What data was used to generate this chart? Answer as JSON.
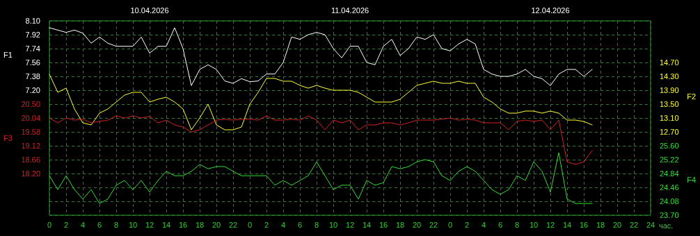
{
  "chart_data": [
    {
      "type": "line",
      "ylabel": "F1",
      "y2label": "F2",
      "xlabel": "час.",
      "annotations": [
        "10.04.2026",
        "11.04.2026",
        "12.04.2026"
      ],
      "x": [
        "2026-04-10T00:00",
        "2026-04-10T01:00",
        "2026-04-10T02:00",
        "2026-04-10T03:00",
        "2026-04-10T04:00",
        "2026-04-10T05:00",
        "2026-04-10T06:00",
        "2026-04-10T07:00",
        "2026-04-10T08:00",
        "2026-04-10T09:00",
        "2026-04-10T10:00",
        "2026-04-10T11:00",
        "2026-04-10T12:00",
        "2026-04-10T13:00",
        "2026-04-10T14:00",
        "2026-04-10T15:00",
        "2026-04-10T16:00",
        "2026-04-10T17:00",
        "2026-04-10T18:00",
        "2026-04-10T19:00",
        "2026-04-10T20:00",
        "2026-04-10T21:00",
        "2026-04-10T22:00",
        "2026-04-10T23:00",
        "2026-04-11T00:00",
        "2026-04-11T01:00",
        "2026-04-11T02:00",
        "2026-04-11T03:00",
        "2026-04-11T04:00",
        "2026-04-11T05:00",
        "2026-04-11T06:00",
        "2026-04-11T07:00",
        "2026-04-11T08:00",
        "2026-04-11T09:00",
        "2026-04-11T10:00",
        "2026-04-11T11:00",
        "2026-04-11T12:00",
        "2026-04-11T13:00",
        "2026-04-11T14:00",
        "2026-04-11T15:00",
        "2026-04-11T16:00",
        "2026-04-11T17:00",
        "2026-04-11T18:00",
        "2026-04-11T19:00",
        "2026-04-11T20:00",
        "2026-04-11T21:00",
        "2026-04-11T22:00",
        "2026-04-11T23:00",
        "2026-04-12T00:00",
        "2026-04-12T01:00",
        "2026-04-12T02:00",
        "2026-04-12T03:00",
        "2026-04-12T04:00",
        "2026-04-12T05:00",
        "2026-04-12T06:00",
        "2026-04-12T07:00",
        "2026-04-12T08:00",
        "2026-04-12T09:00",
        "2026-04-12T10:00",
        "2026-04-12T11:00",
        "2026-04-12T12:00",
        "2026-04-12T13:00",
        "2026-04-12T14:00",
        "2026-04-12T15:00",
        "2026-04-12T16:00",
        "2026-04-12T17:00"
      ],
      "series": [
        {
          "color": "#ffffff",
          "values": [
            8.01,
            7.98,
            7.95,
            7.98,
            7.94,
            7.81,
            7.89,
            7.81,
            7.77,
            7.77,
            7.77,
            7.89,
            7.68,
            7.77,
            7.77,
            8.01,
            7.74,
            7.26,
            7.47,
            7.53,
            7.47,
            7.32,
            7.29,
            7.35,
            7.31,
            7.32,
            7.41,
            7.41,
            7.56,
            7.89,
            7.86,
            7.92,
            7.95,
            7.92,
            7.74,
            7.62,
            7.77,
            7.77,
            7.56,
            7.53,
            7.77,
            7.86,
            7.65,
            7.74,
            7.89,
            7.86,
            7.92,
            7.74,
            7.71,
            7.8,
            7.86,
            7.8,
            7.47,
            7.41,
            7.38,
            7.38,
            7.41,
            7.47,
            7.38,
            7.35,
            7.26,
            7.41,
            7.47,
            7.47,
            7.38,
            7.47
          ]
        },
        {
          "color": "#ffff33",
          "axis": "y2",
          "values": [
            14.36,
            13.84,
            13.96,
            13.36,
            12.96,
            12.9,
            13.24,
            13.36,
            13.56,
            13.76,
            13.84,
            13.84,
            13.56,
            13.64,
            13.7,
            13.56,
            13.36,
            12.76,
            13.1,
            13.5,
            12.9,
            12.76,
            12.76,
            12.84,
            13.5,
            13.84,
            14.24,
            14.24,
            14.16,
            14.16,
            14.04,
            13.96,
            14.04,
            13.96,
            13.9,
            13.9,
            13.9,
            13.84,
            13.7,
            13.56,
            13.56,
            13.56,
            13.64,
            13.84,
            14.04,
            14.1,
            14.16,
            14.1,
            14.1,
            14.16,
            14.1,
            14.1,
            13.7,
            13.56,
            13.36,
            13.24,
            13.24,
            13.3,
            13.3,
            13.24,
            13.3,
            13.24,
            13.04,
            13.04,
            13.0,
            12.9
          ]
        }
      ],
      "xlim": [
        "2026-04-10T00:00",
        "2026-04-13T00:00"
      ],
      "xticks": [
        {
          "value": "2026-04-10T00:00",
          "label": "0"
        },
        {
          "value": "2026-04-10T02:00",
          "label": "2"
        },
        {
          "value": "2026-04-10T04:00",
          "label": "4"
        },
        {
          "value": "2026-04-10T06:00",
          "label": "6"
        },
        {
          "value": "2026-04-10T08:00",
          "label": "8"
        },
        {
          "value": "2026-04-10T10:00",
          "label": "10"
        },
        {
          "value": "2026-04-10T12:00",
          "label": "12"
        },
        {
          "value": "2026-04-10T14:00",
          "label": "14"
        },
        {
          "value": "2026-04-10T16:00",
          "label": "16"
        },
        {
          "value": "2026-04-10T18:00",
          "label": "18"
        },
        {
          "value": "2026-04-10T20:00",
          "label": "20"
        },
        {
          "value": "2026-04-10T22:00",
          "label": "22"
        },
        {
          "value": "2026-04-11T00:00",
          "label": "0"
        },
        {
          "value": "2026-04-11T02:00",
          "label": "2"
        },
        {
          "value": "2026-04-11T04:00",
          "label": "4"
        },
        {
          "value": "2026-04-11T06:00",
          "label": "6"
        },
        {
          "value": "2026-04-11T08:00",
          "label": "8"
        },
        {
          "value": "2026-04-11T10:00",
          "label": "10"
        },
        {
          "value": "2026-04-11T12:00",
          "label": "12"
        },
        {
          "value": "2026-04-11T14:00",
          "label": "14"
        },
        {
          "value": "2026-04-11T16:00",
          "label": "16"
        },
        {
          "value": "2026-04-11T18:00",
          "label": "18"
        },
        {
          "value": "2026-04-11T20:00",
          "label": "20"
        },
        {
          "value": "2026-04-11T22:00",
          "label": "22"
        },
        {
          "value": "2026-04-12T00:00",
          "label": "0"
        },
        {
          "value": "2026-04-12T02:00",
          "label": "2"
        },
        {
          "value": "2026-04-12T04:00",
          "label": "4"
        },
        {
          "value": "2026-04-12T06:00",
          "label": "6"
        },
        {
          "value": "2026-04-12T08:00",
          "label": "8"
        },
        {
          "value": "2026-04-12T10:00",
          "label": "10"
        },
        {
          "value": "2026-04-12T12:00",
          "label": "12"
        },
        {
          "value": "2026-04-12T14:00",
          "label": "14"
        },
        {
          "value": "2026-04-12T16:00",
          "label": "16"
        },
        {
          "value": "2026-04-12T18:00",
          "label": "18"
        },
        {
          "value": "2026-04-12T20:00",
          "label": "20"
        },
        {
          "value": "2026-04-12T22:00",
          "label": "22"
        },
        {
          "value": "2026-04-13T00:00",
          "label": "24"
        }
      ],
      "ylim": [
        5.58,
        8.1
      ],
      "yticks": [
        {
          "value": 7.2,
          "label": "7.20"
        },
        7.38,
        7.56,
        7.74,
        7.92,
        {
          "value": 8.1,
          "label": "8.10"
        }
      ],
      "y2lim": [
        10.3,
        15.9
      ],
      "y2ticks": [
        {
          "value": 12.7,
          "label": "12.70"
        },
        {
          "value": 13.1,
          "label": "13.10"
        },
        {
          "value": 13.5,
          "label": "13.50"
        },
        {
          "value": 13.9,
          "label": "13.90"
        },
        {
          "value": 14.3,
          "label": "14.30"
        },
        {
          "value": 14.7,
          "label": "14.70"
        }
      ],
      "grid": true,
      "marker": "none",
      "line_style": "solid"
    },
    {
      "type": "line",
      "ylabel": "F3",
      "y2label": "F4",
      "tick_labels": "y",
      "x": [
        "2026-04-10T00:00",
        "2026-04-10T01:00",
        "2026-04-10T02:00",
        "2026-04-10T03:00",
        "2026-04-10T04:00",
        "2026-04-10T05:00",
        "2026-04-10T06:00",
        "2026-04-10T07:00",
        "2026-04-10T08:00",
        "2026-04-10T09:00",
        "2026-04-10T10:00",
        "2026-04-10T11:00",
        "2026-04-10T12:00",
        "2026-04-10T13:00",
        "2026-04-10T14:00",
        "2026-04-10T15:00",
        "2026-04-10T16:00",
        "2026-04-10T17:00",
        "2026-04-10T18:00",
        "2026-04-10T19:00",
        "2026-04-10T20:00",
        "2026-04-10T21:00",
        "2026-04-10T22:00",
        "2026-04-10T23:00",
        "2026-04-11T00:00",
        "2026-04-11T01:00",
        "2026-04-11T02:00",
        "2026-04-11T03:00",
        "2026-04-11T04:00",
        "2026-04-11T05:00",
        "2026-04-11T06:00",
        "2026-04-11T07:00",
        "2026-04-11T08:00",
        "2026-04-11T09:00",
        "2026-04-11T10:00",
        "2026-04-11T11:00",
        "2026-04-11T12:00",
        "2026-04-11T13:00",
        "2026-04-11T14:00",
        "2026-04-11T15:00",
        "2026-04-11T16:00",
        "2026-04-11T17:00",
        "2026-04-11T18:00",
        "2026-04-11T19:00",
        "2026-04-11T20:00",
        "2026-04-11T21:00",
        "2026-04-11T22:00",
        "2026-04-11T23:00",
        "2026-04-12T00:00",
        "2026-04-12T01:00",
        "2026-04-12T02:00",
        "2026-04-12T03:00",
        "2026-04-12T04:00",
        "2026-04-12T05:00",
        "2026-04-12T06:00",
        "2026-04-12T07:00",
        "2026-04-12T08:00",
        "2026-04-12T09:00",
        "2026-04-12T10:00",
        "2026-04-12T11:00",
        "2026-04-12T12:00",
        "2026-04-12T13:00",
        "2026-04-12T14:00",
        "2026-04-12T15:00",
        "2026-04-12T16:00",
        "2026-04-12T17:00"
      ],
      "series": [
        {
          "color": "#d42020",
          "values": [
            20.04,
            19.88,
            20.04,
            19.97,
            20.0,
            19.88,
            19.93,
            19.97,
            20.11,
            20.04,
            20.11,
            20.04,
            20.09,
            19.88,
            19.97,
            19.81,
            19.74,
            19.58,
            19.65,
            19.81,
            19.97,
            20.0,
            19.97,
            20.0,
            20.0,
            19.97,
            20.11,
            19.97,
            19.97,
            20.0,
            19.97,
            20.11,
            19.97,
            19.65,
            19.97,
            19.88,
            19.97,
            19.65,
            19.81,
            19.81,
            19.88,
            19.88,
            19.81,
            19.88,
            19.97,
            19.97,
            19.97,
            20.0,
            20.04,
            19.97,
            20.0,
            19.97,
            19.88,
            19.88,
            19.88,
            19.65,
            19.93,
            19.97,
            19.93,
            19.97,
            19.65,
            19.97,
            18.59,
            18.5,
            18.59,
            18.96
          ]
        },
        {
          "color": "#33dd33",
          "axis": "y2",
          "values": [
            24.78,
            24.4,
            24.78,
            24.4,
            24.14,
            24.4,
            24.02,
            24.14,
            24.52,
            24.65,
            24.4,
            24.65,
            24.33,
            24.65,
            24.9,
            24.78,
            24.78,
            24.9,
            25.09,
            24.97,
            25.03,
            25.03,
            24.9,
            24.78,
            24.78,
            24.78,
            24.78,
            24.52,
            24.65,
            24.52,
            24.65,
            24.78,
            25.16,
            24.78,
            24.4,
            24.52,
            24.52,
            24.14,
            24.65,
            24.52,
            24.59,
            25.03,
            24.97,
            25.03,
            25.16,
            25.22,
            25.16,
            24.78,
            24.65,
            24.9,
            25.03,
            24.9,
            24.65,
            24.4,
            24.27,
            24.4,
            24.78,
            24.65,
            25.16,
            24.9,
            24.33,
            25.41,
            24.14,
            24.02,
            24.02,
            24.02
          ]
        }
      ],
      "xlim": [
        "2026-04-10T00:00",
        "2026-04-13T00:00"
      ],
      "ylim": [
        16.82,
        23.26
      ],
      "yticks": [
        {
          "value": 18.2,
          "label": "18.20"
        },
        18.66,
        19.12,
        19.58,
        20.04,
        {
          "value": 20.5,
          "label": "20.50"
        }
      ],
      "y2lim": [
        23.7,
        29.02
      ],
      "y2ticks": [
        {
          "value": 23.7,
          "label": "23.70"
        },
        24.08,
        24.46,
        24.84,
        25.22,
        {
          "value": 25.6,
          "label": "25.60"
        }
      ],
      "marker": "none",
      "line_style": "solid"
    }
  ]
}
